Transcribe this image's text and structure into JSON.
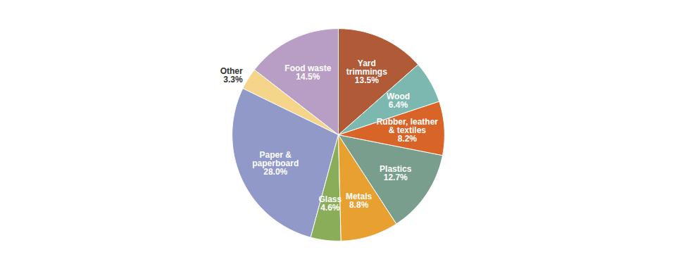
{
  "chart_data": {
    "type": "pie",
    "categories": [
      "Food waste",
      "Other",
      "Paper &\npaperboard",
      "Glass",
      "Metals",
      "Plastics",
      "Rubber, leather\n& textiles",
      "Wood",
      "Yard\ntrimmings"
    ],
    "values": [
      14.5,
      3.3,
      28.0,
      4.6,
      8.8,
      12.7,
      8.2,
      6.4,
      13.5
    ],
    "value_labels": [
      "14.5%",
      "3.3%",
      "28.0%",
      "4.6%",
      "8.8%",
      "12.7%",
      "8.2%",
      "6.4%",
      "13.5%"
    ],
    "colors": [
      "#b89dc5",
      "#f5d58a",
      "#9099c8",
      "#8aad5a",
      "#e8a030",
      "#7a9e8e",
      "#d96428",
      "#7db8b0",
      "#b05a38"
    ],
    "data_labels": true
  }
}
